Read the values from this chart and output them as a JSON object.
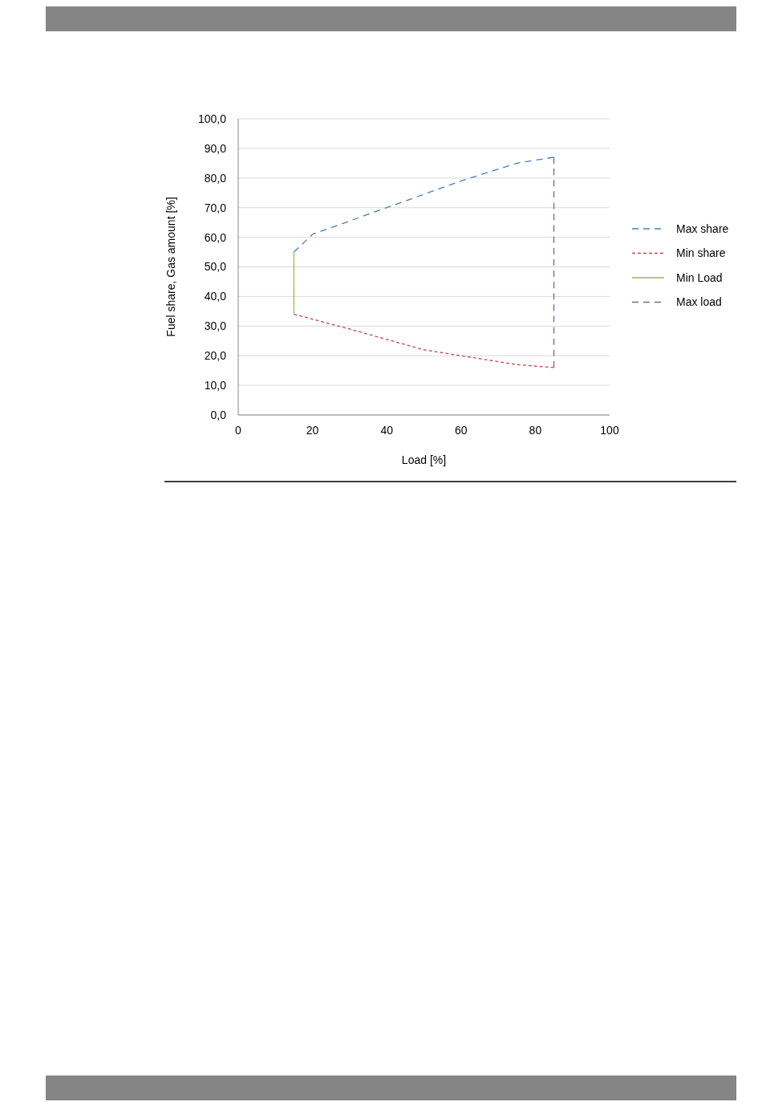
{
  "chart_data": {
    "type": "line",
    "xlabel": "Load [%]",
    "ylabel": "Fuel share, Gas amount [%]",
    "xlim": [
      0,
      100
    ],
    "xticks": [
      0,
      20,
      40,
      60,
      80,
      100
    ],
    "ylim": [
      0,
      100
    ],
    "yticks": [
      {
        "value": 0,
        "label": "0,0"
      },
      {
        "value": 10,
        "label": "10,0"
      },
      {
        "value": 20,
        "label": "20,0"
      },
      {
        "value": 30,
        "label": "30,0"
      },
      {
        "value": 40,
        "label": "40,0"
      },
      {
        "value": 50,
        "label": "50,0"
      },
      {
        "value": 60,
        "label": "60,0"
      },
      {
        "value": 70,
        "label": "70,0"
      },
      {
        "value": 80,
        "label": "80,0"
      },
      {
        "value": 90,
        "label": "90,0"
      },
      {
        "value": 100,
        "label": "100,0"
      }
    ],
    "grid": "y",
    "legend": "right",
    "series": [
      {
        "name": "Max share",
        "color": "#4a7ebb",
        "line_style": "dashed",
        "x": [
          15,
          20,
          40,
          60,
          75,
          85
        ],
        "values": [
          55,
          61,
          70,
          79,
          85,
          87
        ]
      },
      {
        "name": "Min share",
        "color": "#be4b48",
        "line_style": "dotted",
        "x": [
          15,
          30,
          50,
          75,
          85
        ],
        "values": [
          34,
          29,
          22,
          17,
          16
        ]
      },
      {
        "name": "Min Load",
        "color": "#98b954",
        "line_style": "solid",
        "x": [
          15,
          15
        ],
        "values": [
          34,
          55
        ]
      },
      {
        "name": "Max load",
        "color": "#7d60a0",
        "line_style": "dashed",
        "x": [
          85,
          85
        ],
        "values": [
          16,
          87
        ]
      }
    ]
  }
}
